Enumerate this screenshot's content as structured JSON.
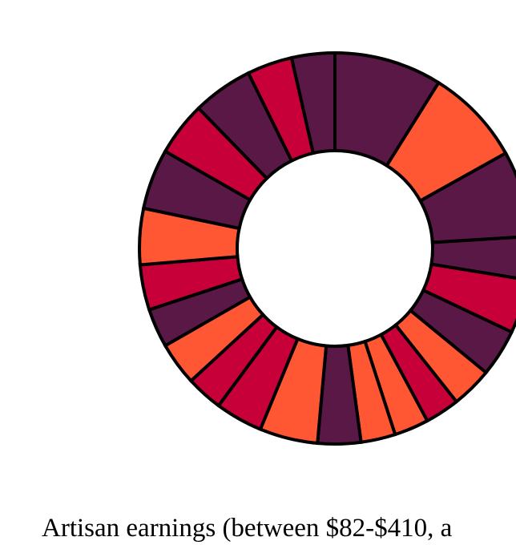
{
  "chart_data": {
    "type": "pie",
    "donut": true,
    "caption": "Artisan earnings (between $82-$410, a",
    "palette": {
      "purple": "#5a1846",
      "red": "#c70039",
      "orange": "#ff5733",
      "stroke": "#000000"
    },
    "slices": [
      {
        "value": 0.5,
        "color": "purple"
      },
      {
        "value": 0.45,
        "color": "orange"
      },
      {
        "value": 0.4,
        "color": "purple"
      },
      {
        "value": 0.2,
        "color": "purple"
      },
      {
        "value": 0.25,
        "color": "red"
      },
      {
        "value": 0.22,
        "color": "purple"
      },
      {
        "value": 0.19,
        "color": "orange"
      },
      {
        "value": 0.16,
        "color": "red"
      },
      {
        "value": 0.16,
        "color": "orange"
      },
      {
        "value": 0.16,
        "color": "orange"
      },
      {
        "value": 0.2,
        "color": "purple"
      },
      {
        "value": 0.27,
        "color": "orange"
      },
      {
        "value": 0.22,
        "color": "red"
      },
      {
        "value": 0.17,
        "color": "red"
      },
      {
        "value": 0.2,
        "color": "orange"
      },
      {
        "value": 0.18,
        "color": "purple"
      },
      {
        "value": 0.21,
        "color": "red"
      },
      {
        "value": 0.26,
        "color": "orange"
      },
      {
        "value": 0.28,
        "color": "purple"
      },
      {
        "value": 0.25,
        "color": "red"
      },
      {
        "value": 0.28,
        "color": "purple"
      },
      {
        "value": 0.21,
        "color": "red"
      },
      {
        "value": 0.2,
        "color": "purple"
      }
    ]
  }
}
